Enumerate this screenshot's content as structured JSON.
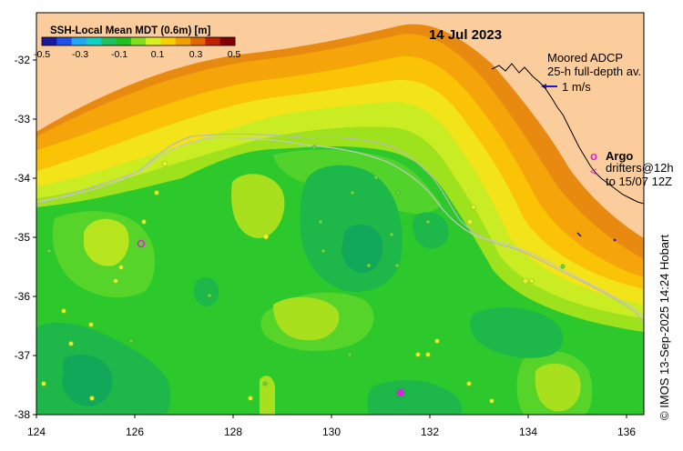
{
  "map": {
    "date": "14 Jul 2023",
    "colorbar": {
      "title": "SSH-Local Mean MDT (0.6m) [m]",
      "ticks": [
        "-0.5",
        "-0.3",
        "-0.1",
        "0.1",
        "0.3",
        "0.5"
      ],
      "colors": [
        "#1a1aa0",
        "#2050e8",
        "#20a8f0",
        "#10d0c0",
        "#20c060",
        "#20c020",
        "#80e020",
        "#d8f020",
        "#f8d000",
        "#f0a000",
        "#e06800",
        "#c02000",
        "#800000"
      ]
    },
    "x_ticks": [
      "124",
      "126",
      "128",
      "130",
      "132",
      "134",
      "136"
    ],
    "y_ticks": [
      "-32",
      "-33",
      "-34",
      "-35",
      "-36",
      "-37",
      "-38"
    ],
    "legend": {
      "adcp_title": "Moored ADCP",
      "adcp_sub": "25-h full-depth av.",
      "adcp_scale": "1 m/s",
      "argo_marker": "o",
      "argo_label": "Argo",
      "drifter_marker": "<",
      "drifter_line1": "drifters@12h",
      "drifter_line2": "to 15/07 12Z"
    },
    "credit": "© IMOS 13-Sep-2025 14:24 Hobart",
    "colors": {
      "land": "#fccd9c",
      "ocean_base": "#2cc82c",
      "argo": "#e020e0",
      "adcp": "#1a1ad0"
    }
  }
}
